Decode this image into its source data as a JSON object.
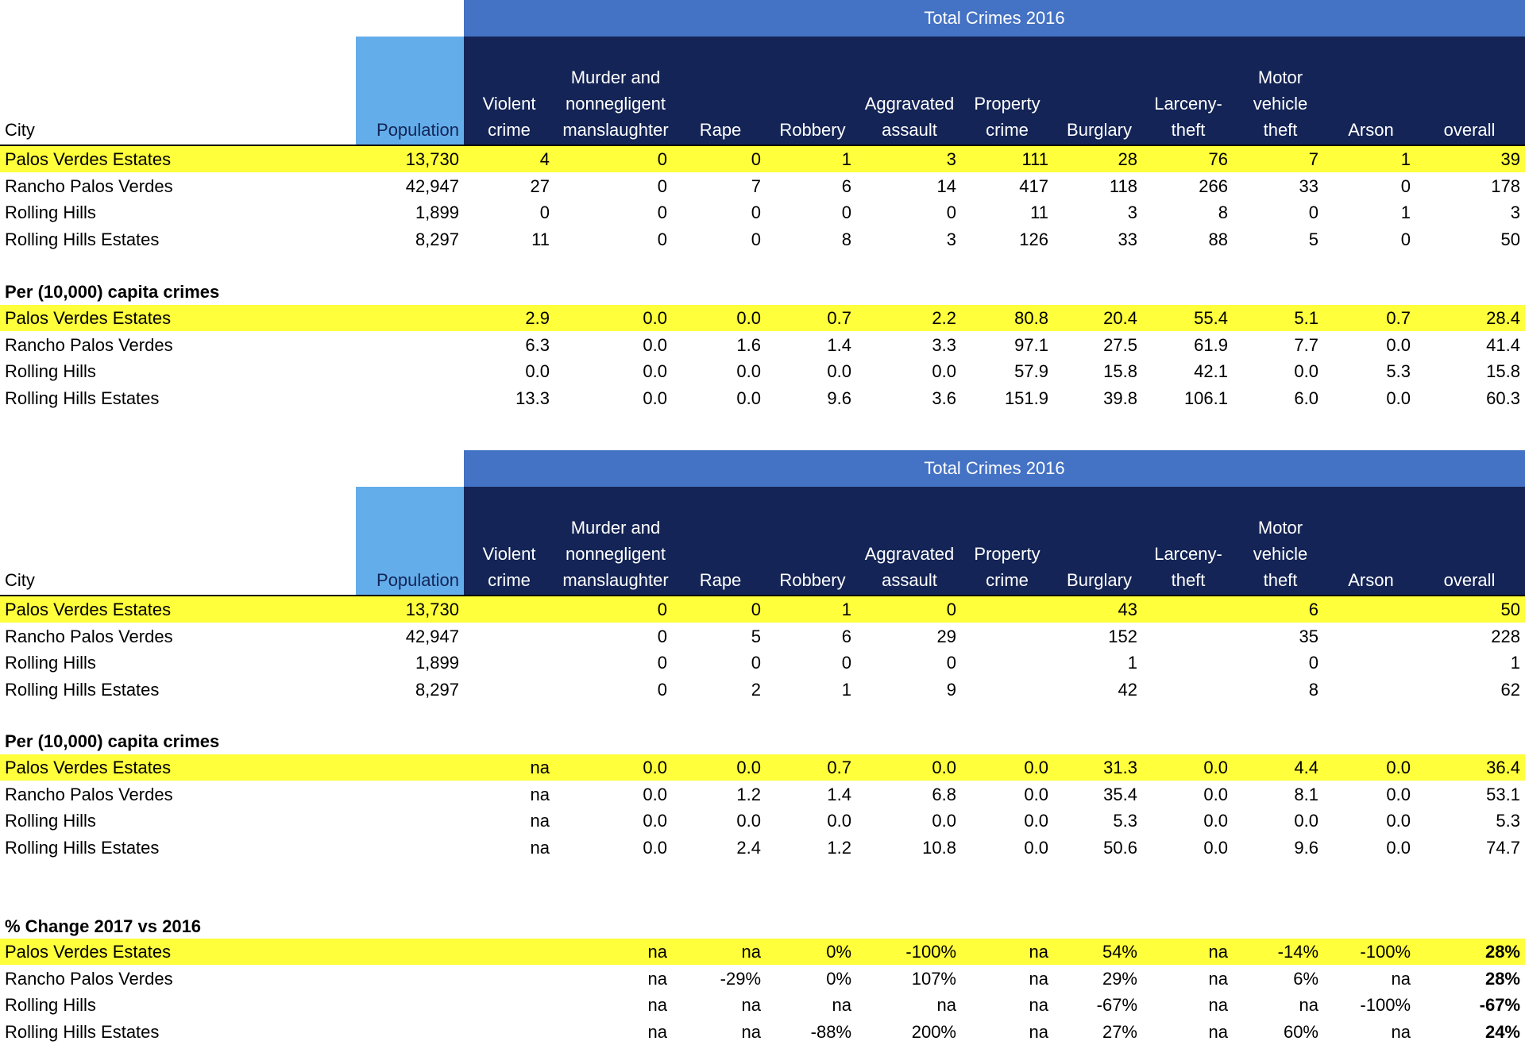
{
  "header": {
    "band_title": "Total Crimes 2016",
    "city": "City",
    "population": "Population",
    "columns": [
      {
        "lines": [
          "Violent",
          "crime"
        ]
      },
      {
        "lines": [
          "Murder and",
          "nonnegligent",
          "manslaughter"
        ]
      },
      {
        "lines": [
          "Rape"
        ]
      },
      {
        "lines": [
          "Robbery"
        ]
      },
      {
        "lines": [
          "Aggravated",
          "assault"
        ]
      },
      {
        "lines": [
          "Property",
          "crime"
        ]
      },
      {
        "lines": [
          "Burglary"
        ]
      },
      {
        "lines": [
          "Larceny-",
          "theft"
        ]
      },
      {
        "lines": [
          "Motor",
          "vehicle",
          "theft"
        ]
      },
      {
        "lines": [
          "Arson"
        ]
      },
      {
        "lines": [
          "overall"
        ]
      }
    ]
  },
  "colors": {
    "band": "#4472c4",
    "header_dark": "#142456",
    "population_bg": "#63aeea",
    "highlight": "#ffff3b"
  },
  "table1": {
    "rows": [
      {
        "city": "Palos Verdes Estates",
        "population": "13,730",
        "values": [
          "4",
          "0",
          "0",
          "1",
          "3",
          "111",
          "28",
          "76",
          "7",
          "1",
          "39"
        ]
      },
      {
        "city": "Rancho Palos Verdes",
        "population": "42,947",
        "values": [
          "27",
          "0",
          "7",
          "6",
          "14",
          "417",
          "118",
          "266",
          "33",
          "0",
          "178"
        ]
      },
      {
        "city": "Rolling Hills",
        "population": "1,899",
        "values": [
          "0",
          "0",
          "0",
          "0",
          "0",
          "11",
          "3",
          "8",
          "0",
          "1",
          "3"
        ]
      },
      {
        "city": "Rolling Hills Estates",
        "population": "8,297",
        "values": [
          "11",
          "0",
          "0",
          "8",
          "3",
          "126",
          "33",
          "88",
          "5",
          "0",
          "50"
        ]
      }
    ],
    "per_capita_title": "Per (10,000) capita crimes",
    "per_capita": [
      {
        "city": "Palos Verdes Estates",
        "values": [
          "2.9",
          "0.0",
          "0.0",
          "0.7",
          "2.2",
          "80.8",
          "20.4",
          "55.4",
          "5.1",
          "0.7",
          "28.4"
        ]
      },
      {
        "city": "Rancho Palos Verdes",
        "values": [
          "6.3",
          "0.0",
          "1.6",
          "1.4",
          "3.3",
          "97.1",
          "27.5",
          "61.9",
          "7.7",
          "0.0",
          "41.4"
        ]
      },
      {
        "city": "Rolling Hills",
        "values": [
          "0.0",
          "0.0",
          "0.0",
          "0.0",
          "0.0",
          "57.9",
          "15.8",
          "42.1",
          "0.0",
          "5.3",
          "15.8"
        ]
      },
      {
        "city": "Rolling Hills Estates",
        "values": [
          "13.3",
          "0.0",
          "0.0",
          "9.6",
          "3.6",
          "151.9",
          "39.8",
          "106.1",
          "6.0",
          "0.0",
          "60.3"
        ]
      }
    ]
  },
  "table2": {
    "rows": [
      {
        "city": "Palos Verdes Estates",
        "population": "13,730",
        "values": [
          "",
          "0",
          "0",
          "1",
          "0",
          "",
          "43",
          "",
          "6",
          "",
          "50"
        ]
      },
      {
        "city": "Rancho Palos Verdes",
        "population": "42,947",
        "values": [
          "",
          "0",
          "5",
          "6",
          "29",
          "",
          "152",
          "",
          "35",
          "",
          "228"
        ]
      },
      {
        "city": "Rolling Hills",
        "population": "1,899",
        "values": [
          "",
          "0",
          "0",
          "0",
          "0",
          "",
          "1",
          "",
          "0",
          "",
          "1"
        ]
      },
      {
        "city": "Rolling Hills Estates",
        "population": "8,297",
        "values": [
          "",
          "0",
          "2",
          "1",
          "9",
          "",
          "42",
          "",
          "8",
          "",
          "62"
        ]
      }
    ],
    "per_capita_title": "Per (10,000) capita crimes",
    "per_capita": [
      {
        "city": "Palos Verdes Estates",
        "values": [
          "na",
          "0.0",
          "0.0",
          "0.7",
          "0.0",
          "0.0",
          "31.3",
          "0.0",
          "4.4",
          "0.0",
          "36.4"
        ]
      },
      {
        "city": "Rancho Palos Verdes",
        "values": [
          "na",
          "0.0",
          "1.2",
          "1.4",
          "6.8",
          "0.0",
          "35.4",
          "0.0",
          "8.1",
          "0.0",
          "53.1"
        ]
      },
      {
        "city": "Rolling Hills",
        "values": [
          "na",
          "0.0",
          "0.0",
          "0.0",
          "0.0",
          "0.0",
          "5.3",
          "0.0",
          "0.0",
          "0.0",
          "5.3"
        ]
      },
      {
        "city": "Rolling Hills Estates",
        "values": [
          "na",
          "0.0",
          "2.4",
          "1.2",
          "10.8",
          "0.0",
          "50.6",
          "0.0",
          "9.6",
          "0.0",
          "74.7"
        ]
      }
    ]
  },
  "change": {
    "title": "% Change 2017 vs 2016",
    "rows": [
      {
        "city": "Palos Verdes Estates",
        "values": [
          "na",
          "na",
          "0%",
          "-100%",
          "na",
          "54%",
          "na",
          "-14%",
          "-100%",
          "28%"
        ]
      },
      {
        "city": "Rancho Palos Verdes",
        "values": [
          "na",
          "-29%",
          "0%",
          "107%",
          "na",
          "29%",
          "na",
          "6%",
          "na",
          "28%"
        ]
      },
      {
        "city": "Rolling Hills",
        "values": [
          "na",
          "na",
          "na",
          "na",
          "na",
          "-67%",
          "na",
          "na",
          "-100%",
          "-67%"
        ]
      },
      {
        "city": "Rolling Hills Estates",
        "values": [
          "na",
          "na",
          "-88%",
          "200%",
          "na",
          "27%",
          "na",
          "60%",
          "na",
          "24%"
        ]
      }
    ]
  }
}
